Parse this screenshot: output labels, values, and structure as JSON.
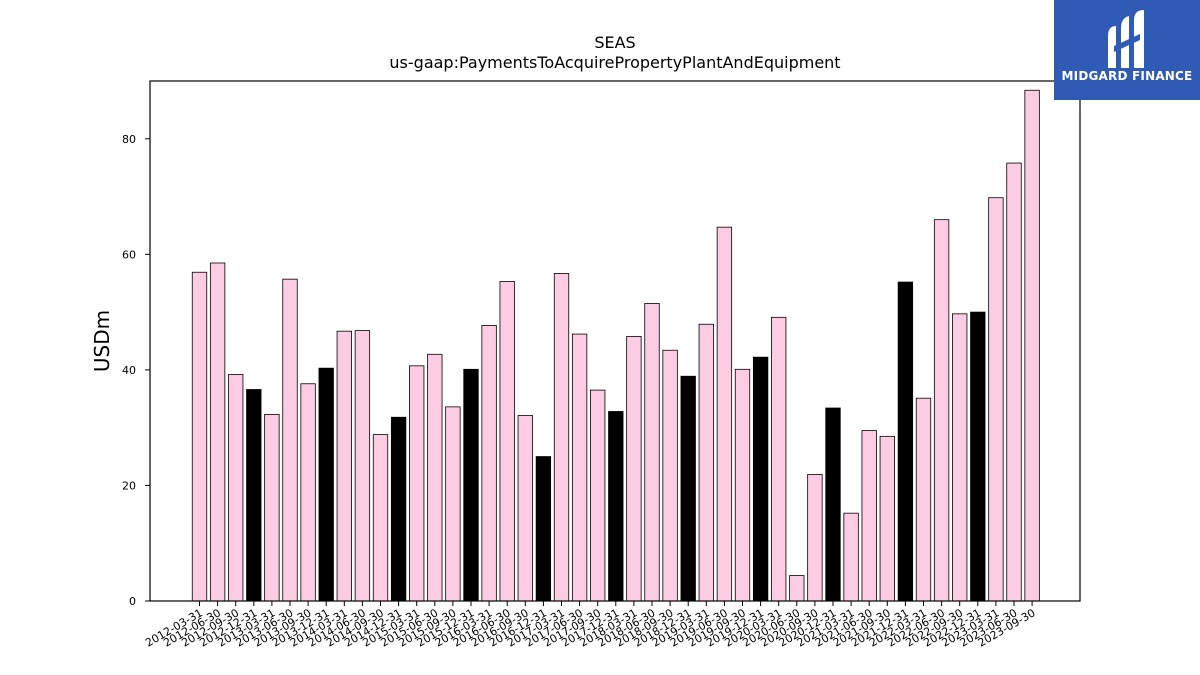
{
  "colors": {
    "bar_primary": "#fccce3",
    "bar_highlight": "#000000",
    "bar_edge": "#000000",
    "logo_bg": "#2f5bb5"
  },
  "logo": {
    "text": "MIDGARD FINANCE",
    "icon": "midgard-logo-icon"
  },
  "chart_data": {
    "type": "bar",
    "title": "SEAS",
    "subtitle": "us-gaap:PaymentsToAcquirePropertyPlantAndEquipment",
    "xlabel": "",
    "ylabel": "USDm",
    "ylim": [
      0,
      90
    ],
    "yticks": [
      0,
      20,
      40,
      60,
      80
    ],
    "grid": false,
    "categories": [
      "2012-03-31",
      "2012-06-30",
      "2012-09-30",
      "2012-12-31",
      "2013-03-31",
      "2013-06-30",
      "2013-09-30",
      "2013-12-31",
      "2014-03-31",
      "2014-06-30",
      "2014-09-30",
      "2014-12-31",
      "2015-03-31",
      "2015-06-30",
      "2015-09-30",
      "2015-12-31",
      "2016-03-31",
      "2016-06-30",
      "2016-09-30",
      "2016-12-31",
      "2017-03-31",
      "2017-06-30",
      "2017-09-30",
      "2017-12-31",
      "2018-03-31",
      "2018-06-30",
      "2018-09-30",
      "2018-12-31",
      "2019-03-31",
      "2019-06-30",
      "2019-09-30",
      "2019-12-31",
      "2020-03-31",
      "2020-06-30",
      "2020-09-30",
      "2020-12-31",
      "2021-03-31",
      "2021-06-30",
      "2021-09-30",
      "2021-12-31",
      "2022-03-31",
      "2022-06-30",
      "2022-09-30",
      "2022-12-31",
      "2023-03-31",
      "2023-06-30",
      "2023-09-30"
    ],
    "values": [
      56.9,
      58.5,
      39.2,
      36.6,
      32.3,
      55.7,
      37.6,
      40.3,
      46.7,
      46.8,
      28.8,
      31.8,
      40.7,
      42.7,
      33.6,
      40.1,
      47.7,
      55.3,
      32.1,
      25.0,
      56.7,
      46.2,
      36.5,
      32.8,
      45.8,
      51.5,
      43.4,
      38.9,
      47.9,
      64.7,
      40.1,
      42.2,
      49.1,
      4.4,
      21.9,
      33.4,
      15.2,
      29.5,
      28.5,
      55.2,
      35.1,
      66.0,
      49.7,
      50.0,
      69.8,
      75.8,
      88.4
    ],
    "highlight": [
      false,
      false,
      false,
      true,
      false,
      false,
      false,
      true,
      false,
      false,
      false,
      true,
      false,
      false,
      false,
      true,
      false,
      false,
      false,
      true,
      false,
      false,
      false,
      true,
      false,
      false,
      false,
      true,
      false,
      false,
      false,
      true,
      false,
      false,
      false,
      true,
      false,
      false,
      false,
      true,
      false,
      false,
      false,
      true,
      false,
      false,
      false
    ]
  }
}
